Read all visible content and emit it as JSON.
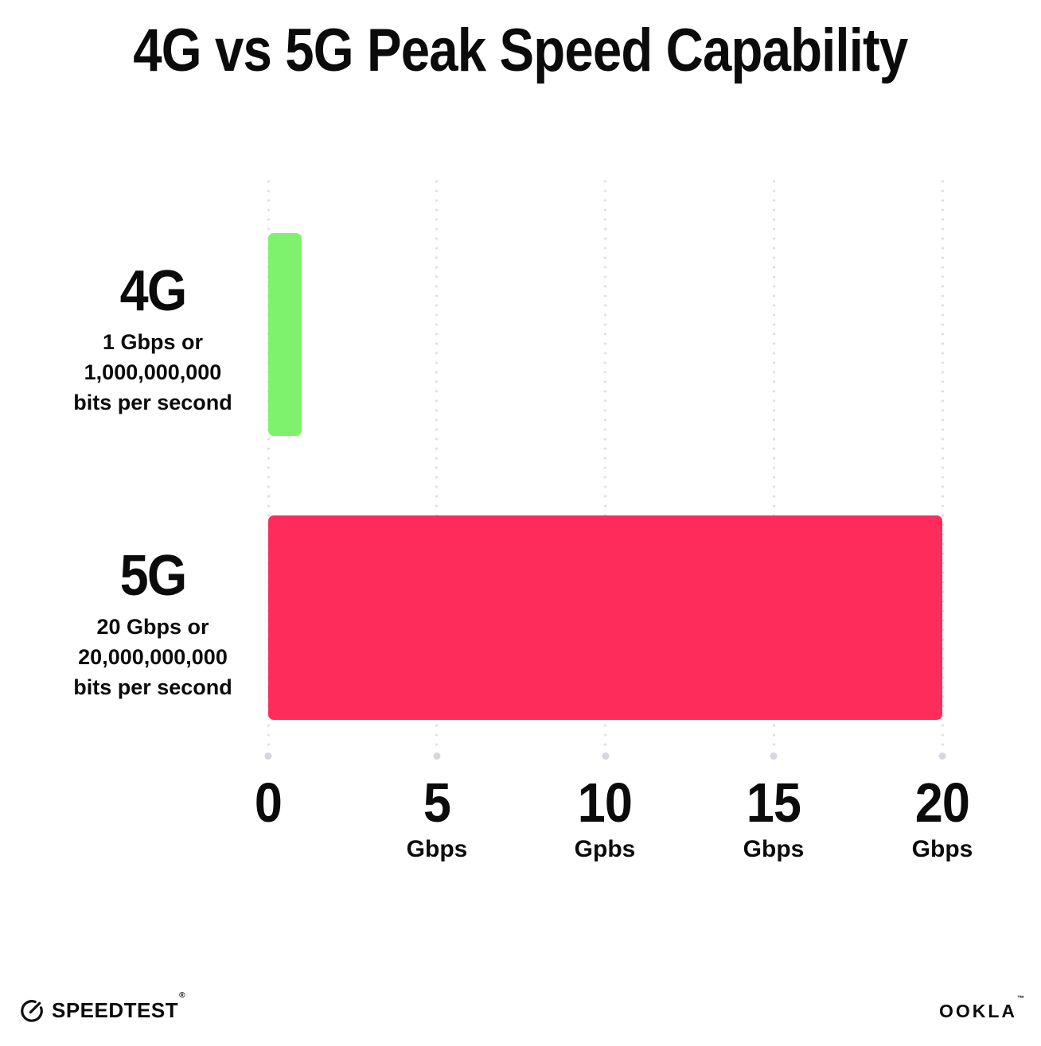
{
  "chart_data": {
    "type": "bar",
    "orientation": "horizontal",
    "title": "4G vs 5G Peak Speed Capability",
    "categories": [
      "4G",
      "5G"
    ],
    "values": [
      1,
      20
    ],
    "unit": "Gbps",
    "xlim": [
      0,
      20
    ],
    "x_tick_values": [
      0,
      5,
      10,
      15,
      20
    ],
    "bar_colors": [
      "#7EF26D",
      "#FD2C5A"
    ],
    "grid": "vertical dotted gridlines with round end dots",
    "legend_position": "none",
    "rows": [
      {
        "label": "4G",
        "desc_lines": [
          "1 Gbps or",
          "1,000,000,000",
          "bits per second"
        ]
      },
      {
        "label": "5G",
        "desc_lines": [
          "20 Gbps or",
          "20,000,000,000",
          "bits per second"
        ]
      }
    ],
    "x_ticks": [
      {
        "value": "0",
        "unit": ""
      },
      {
        "value": "5",
        "unit": "Gbps"
      },
      {
        "value": "10",
        "unit": "Gpbs"
      },
      {
        "value": "15",
        "unit": "Gbps"
      },
      {
        "value": "20",
        "unit": "Gbps"
      }
    ]
  },
  "footer": {
    "speedtest_label": "SPEEDTEST",
    "speedtest_mark": "®",
    "ookla_label": "OOKLA",
    "ookla_mark": "™"
  }
}
